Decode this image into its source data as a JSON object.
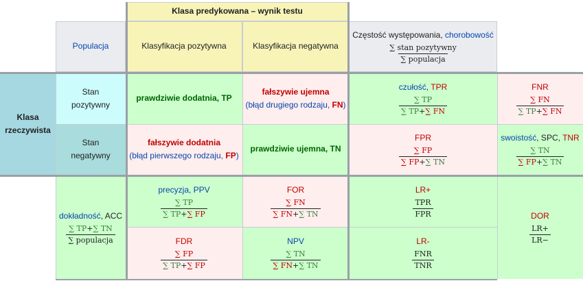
{
  "header": {
    "predicted_class": "Klasa predykowana – wynik testu",
    "population": "Populacja",
    "positive_classification": "Klasyfikacja pozytywna",
    "negative_classification": "Klasyfikacja negatywna",
    "prevalence_prefix": "Częstość występowania, ",
    "prevalence_link": "chorobowość",
    "prevalence_num": "∑ stan pozytywny",
    "prevalence_den": "∑ populacja"
  },
  "actual": {
    "label_line1": "Klasa",
    "label_line2": "rzeczywista",
    "positive_line1": "Stan",
    "positive_line2": "pozytywny",
    "negative_line1": "Stan",
    "negative_line2": "negatywny"
  },
  "cells": {
    "tp": {
      "text": "prawdziwie dodatnia, ",
      "abbr": "TP"
    },
    "fn": {
      "text": "fałszywie ujemna",
      "sub": "(błąd drugiego rodzaju, ",
      "abbr": "FN",
      "close": ")"
    },
    "fp": {
      "text": "fałszywie dodatnia",
      "sub": "(błąd pierwszego rodzaju, ",
      "abbr": "FP",
      "close": ")"
    },
    "tn": {
      "text": "prawdziwie ujemna, ",
      "abbr": "TN"
    }
  },
  "metrics": {
    "tpr": {
      "name": "czułość, ",
      "abbr": "TPR",
      "num": "∑ TP",
      "den_a": "∑ TP",
      "plus": "+",
      "den_b": "∑ FN"
    },
    "fnr": {
      "abbr": "FNR",
      "num": "∑ FN",
      "den_a": "∑ TP",
      "plus": "+",
      "den_b": "∑ FN"
    },
    "fpr": {
      "abbr": "FPR",
      "num": "∑ FP",
      "den_a": "∑ FP",
      "plus": "+",
      "den_b": "∑ TN"
    },
    "tnr": {
      "name": "swoistość",
      "rest": ", SPC, ",
      "abbr": "TNR",
      "num": "∑ TN",
      "den_a": "∑ FP",
      "plus": "+",
      "den_b": "∑ TN"
    },
    "acc": {
      "name": "dokładność",
      "rest": ", ACC",
      "num_a": "∑ TP",
      "plus": "+",
      "num_b": "∑ TN",
      "den": "∑ populacja"
    },
    "ppv": {
      "name": "precyzja",
      "rest": ", PPV",
      "num": "∑ TP",
      "den_a": "∑ TP",
      "plus": "+",
      "den_b": "∑ FP"
    },
    "for": {
      "abbr": "FOR",
      "num": "∑ FN",
      "den_a": "∑ FN",
      "plus": "+",
      "den_b": "∑ TN"
    },
    "fdr": {
      "abbr": "FDR",
      "num": "∑ FP",
      "den_a": "∑ TP",
      "plus": "+",
      "den_b": "∑ FP"
    },
    "npv": {
      "abbr": "NPV",
      "num": "∑ TN",
      "den_a": "∑ FN",
      "plus": "+",
      "den_b": "∑ TN"
    },
    "lrp": {
      "abbr": "LR+",
      "num": "TPR",
      "den": "FPR"
    },
    "lrn": {
      "abbr": "LR-",
      "num": "FNR",
      "den": "TNR"
    },
    "dor": {
      "abbr": "DOR",
      "num": "LR+",
      "den": "LR−"
    }
  },
  "colors": {
    "yellow": "#f8f4b8",
    "light_blue": "#ccfcfc",
    "teal": "#a5d8e0",
    "green": "#ccffcc",
    "pink": "#ffeeee",
    "gray": "#eaecf0"
  }
}
